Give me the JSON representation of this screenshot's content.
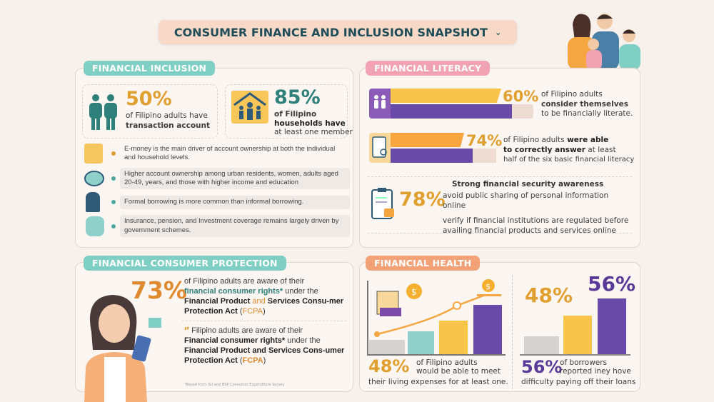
{
  "header": {
    "title": "CONSUMER FINANCE AND INCLUSION SNAPSHOT",
    "chevron_icon": "chevron-down-icon"
  },
  "colors": {
    "teal": "#2f7f7a",
    "gold": "#e0a030",
    "purple": "#6a4aa8",
    "orange": "#f5a640",
    "pink": "#f2a3b3",
    "tag_teal": "#7fcfc4",
    "tag_orange": "#f3a278"
  },
  "inclusion": {
    "tag": "FINANCIAL INCLUSION",
    "stat1": {
      "value": "50%",
      "line1": "of Filipino adults have",
      "line2": "transaction account"
    },
    "stat2": {
      "value": "85%",
      "line1": "of Filipino",
      "line2": "households have",
      "line3": "at least one member"
    },
    "bullets": [
      "E-money is the main driver of account ownership at both the individual and household levels.",
      "Higher account ownership among urban residents, women, adults aged 20-49, years, and those with higher income and education",
      "Formal borrowing is more common than  informal borrowing.",
      "Insurance, pension, and Investment coverage remains largely driven by government schemes."
    ]
  },
  "literacy": {
    "tag": "FINANCIAL LITERACY",
    "stat1": {
      "value": "60%",
      "line1": "of Filipino adults",
      "line2": "consider themselves",
      "line3": "to be financially literate."
    },
    "stat2": {
      "value": "74%",
      "pre": "of Filipino adults ",
      "bold1": "were able",
      "bold2": "to correctly answer",
      "post": " at least",
      "line3": "half of the six basic financial literacy"
    },
    "security": {
      "heading": "Strong financial security awareness",
      "value": "78%",
      "line1": "avoid public sharing of personal information online",
      "line2": "verify if financial institutions are regulated before availing financial products and services online"
    }
  },
  "protection": {
    "tag": "FINANCIAL CONSUMER PROTECTION",
    "stat1": {
      "value": "73%",
      "a": "of Filipino adults are aware of their",
      "b": "financial consumer rights*",
      "c": " under the",
      "d": "Financial Product",
      "e": " and ",
      "f": "Services Consu-mer Protection Act",
      "g": " (",
      "h": "FCPA",
      "i": ")"
    },
    "stat2": {
      "a": "Filipino adults are aware of their",
      "b": "Financial consumer rights*",
      "c": " under the",
      "d": "Financial Product and Services Cons-umer Protection Act",
      "e": " (",
      "f": "FCPA",
      "g": ")"
    },
    "footnote": "*Based from (G) and BSP Consumer Expenditure Survey"
  },
  "health": {
    "tag": "FINANCIAL HEALTH",
    "left": {
      "value": "48%",
      "line1": "of Filipino adults",
      "line2": "would be able to meet",
      "line3": "their living expenses for at least one."
    },
    "right": {
      "top_value_1": "48%",
      "top_value_2": "56%",
      "value": "56%",
      "line1": "of borrowers",
      "line2": "reported iney hove",
      "line3": "difficulty paying off their loans"
    }
  }
}
